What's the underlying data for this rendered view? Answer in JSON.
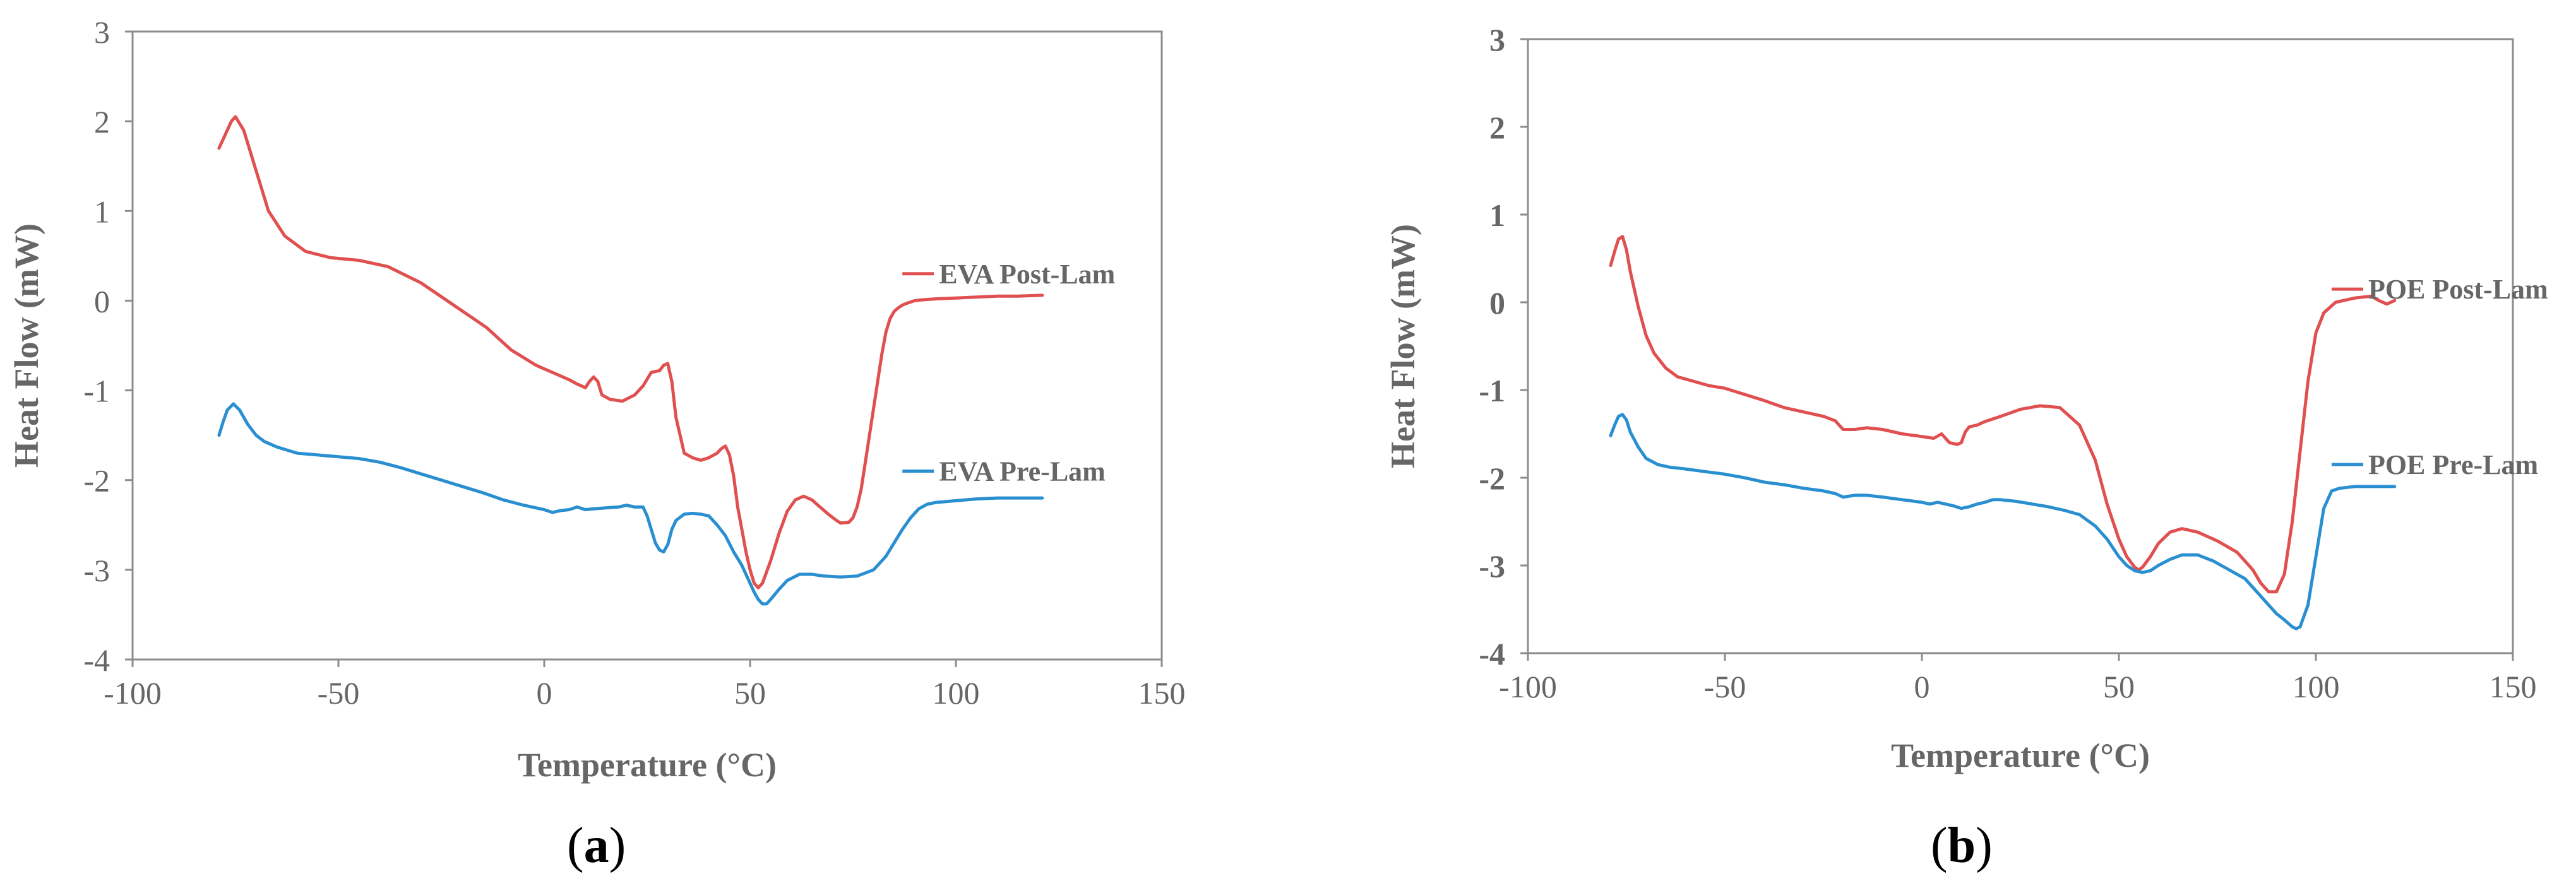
{
  "figure": {
    "panels": [
      {
        "caption_letter": "a"
      },
      {
        "caption_letter": "b"
      }
    ]
  },
  "colors": {
    "post_lam": "#e05050",
    "pre_lam": "#2a8fd0",
    "axis": "#8c8c8c",
    "text": "#666666"
  },
  "chart_data": [
    {
      "type": "line",
      "title": "",
      "xlabel": "Temperature (°C)",
      "ylabel": "Heat Flow (mW)",
      "xlim": [
        -100,
        150
      ],
      "ylim": [
        -4,
        3
      ],
      "xticks": [
        -100,
        -50,
        0,
        50,
        100,
        150
      ],
      "yticks": [
        -4,
        -3,
        -2,
        -1,
        0,
        1,
        2,
        3
      ],
      "series": [
        {
          "name": "EVA Post-Lam",
          "label_anchor": [
            87,
            0.3
          ],
          "x": [
            -79,
            -77.5,
            -76,
            -75,
            -73,
            -70,
            -67,
            -63,
            -58,
            -52,
            -45,
            -38,
            -30,
            -22,
            -14,
            -8,
            -2,
            3,
            6,
            8,
            10,
            11,
            12,
            13,
            14,
            16,
            19,
            22,
            24,
            26,
            28,
            29,
            30,
            31,
            32,
            34,
            36,
            38,
            40,
            42,
            43,
            44,
            45,
            46,
            47,
            48,
            49,
            50,
            51,
            52,
            53,
            55,
            57,
            59,
            61,
            63,
            65,
            67,
            69,
            71,
            72,
            74,
            75,
            76,
            77,
            78,
            79,
            80,
            81,
            82,
            83,
            84,
            85,
            86,
            87,
            88,
            90,
            92,
            95,
            100,
            105,
            110,
            115,
            121
          ],
          "y": [
            1.7,
            1.85,
            2.0,
            2.05,
            1.9,
            1.45,
            1.0,
            0.72,
            0.55,
            0.48,
            0.45,
            0.38,
            0.2,
            -0.05,
            -0.3,
            -0.55,
            -0.72,
            -0.82,
            -0.88,
            -0.93,
            -0.97,
            -0.9,
            -0.85,
            -0.9,
            -1.05,
            -1.1,
            -1.12,
            -1.05,
            -0.95,
            -0.8,
            -0.78,
            -0.72,
            -0.7,
            -0.9,
            -1.3,
            -1.7,
            -1.75,
            -1.78,
            -1.75,
            -1.7,
            -1.65,
            -1.62,
            -1.72,
            -1.95,
            -2.3,
            -2.55,
            -2.8,
            -3.0,
            -3.15,
            -3.2,
            -3.15,
            -2.9,
            -2.6,
            -2.35,
            -2.22,
            -2.18,
            -2.22,
            -2.3,
            -2.38,
            -2.45,
            -2.48,
            -2.47,
            -2.42,
            -2.3,
            -2.1,
            -1.8,
            -1.5,
            -1.2,
            -0.9,
            -0.6,
            -0.35,
            -0.2,
            -0.12,
            -0.08,
            -0.05,
            -0.03,
            0.0,
            0.01,
            0.02,
            0.03,
            0.04,
            0.05,
            0.05,
            0.06
          ]
        },
        {
          "name": "EVA Pre-Lam",
          "label_anchor": [
            87,
            -1.9
          ],
          "x": [
            -79,
            -78,
            -77,
            -75.5,
            -74,
            -72,
            -70,
            -68,
            -65,
            -60,
            -55,
            -50,
            -45,
            -40,
            -35,
            -30,
            -25,
            -20,
            -15,
            -10,
            -5,
            0,
            2,
            4,
            6,
            8,
            10,
            12,
            15,
            18,
            20,
            22,
            24,
            25,
            26,
            27,
            28,
            29,
            30,
            31,
            32,
            34,
            36,
            38,
            40,
            42,
            44,
            46,
            48,
            49,
            50,
            51,
            52,
            53,
            54,
            55,
            57,
            59,
            62,
            65,
            68,
            72,
            76,
            80,
            83,
            85,
            87,
            89,
            91,
            93,
            95,
            100,
            105,
            110,
            115,
            121
          ],
          "y": [
            -1.5,
            -1.35,
            -1.22,
            -1.15,
            -1.22,
            -1.38,
            -1.5,
            -1.57,
            -1.63,
            -1.7,
            -1.72,
            -1.74,
            -1.76,
            -1.8,
            -1.86,
            -1.93,
            -2.0,
            -2.07,
            -2.14,
            -2.22,
            -2.28,
            -2.33,
            -2.36,
            -2.34,
            -2.33,
            -2.3,
            -2.33,
            -2.32,
            -2.31,
            -2.3,
            -2.28,
            -2.3,
            -2.3,
            -2.4,
            -2.55,
            -2.7,
            -2.78,
            -2.8,
            -2.72,
            -2.55,
            -2.45,
            -2.38,
            -2.37,
            -2.38,
            -2.4,
            -2.5,
            -2.62,
            -2.8,
            -2.95,
            -3.05,
            -3.15,
            -3.25,
            -3.33,
            -3.38,
            -3.38,
            -3.33,
            -3.22,
            -3.12,
            -3.05,
            -3.05,
            -3.07,
            -3.08,
            -3.07,
            -3.0,
            -2.85,
            -2.7,
            -2.55,
            -2.42,
            -2.32,
            -2.27,
            -2.25,
            -2.23,
            -2.21,
            -2.2,
            -2.2,
            -2.2
          ]
        }
      ]
    },
    {
      "type": "line",
      "title": "",
      "xlabel": "Temperature (°C)",
      "ylabel": "Heat Flow (mW)",
      "xlim": [
        -100,
        150
      ],
      "ylim": [
        -4,
        3
      ],
      "xticks": [
        -100,
        -50,
        0,
        50,
        100,
        150
      ],
      "yticks": [
        -4,
        -3,
        -2,
        -1,
        0,
        1,
        2,
        3
      ],
      "series": [
        {
          "name": "POE Post-Lam",
          "label_anchor": [
            104,
            0.15
          ],
          "x": [
            -79,
            -78,
            -77,
            -76,
            -75,
            -74,
            -72,
            -70,
            -68,
            -65,
            -62,
            -58,
            -54,
            -50,
            -45,
            -40,
            -35,
            -30,
            -25,
            -22,
            -20,
            -17,
            -14,
            -10,
            -5,
            0,
            3,
            5,
            7,
            9,
            10,
            11,
            12,
            14,
            16,
            20,
            25,
            30,
            35,
            40,
            44,
            47,
            50,
            52,
            54,
            55,
            56,
            58,
            60,
            63,
            66,
            70,
            75,
            80,
            84,
            86,
            88,
            90,
            92,
            94,
            96,
            98,
            100,
            102,
            105,
            110,
            114,
            116,
            118,
            120
          ],
          "y": [
            0.42,
            0.58,
            0.72,
            0.75,
            0.6,
            0.35,
            -0.05,
            -0.38,
            -0.58,
            -0.75,
            -0.85,
            -0.9,
            -0.95,
            -0.98,
            -1.05,
            -1.12,
            -1.2,
            -1.25,
            -1.3,
            -1.35,
            -1.45,
            -1.45,
            -1.43,
            -1.45,
            -1.5,
            -1.53,
            -1.55,
            -1.5,
            -1.6,
            -1.62,
            -1.6,
            -1.48,
            -1.42,
            -1.4,
            -1.36,
            -1.3,
            -1.22,
            -1.18,
            -1.2,
            -1.4,
            -1.8,
            -2.3,
            -2.7,
            -2.9,
            -3.02,
            -3.05,
            -3.02,
            -2.9,
            -2.75,
            -2.62,
            -2.58,
            -2.62,
            -2.72,
            -2.85,
            -3.05,
            -3.2,
            -3.3,
            -3.3,
            -3.1,
            -2.5,
            -1.7,
            -0.9,
            -0.35,
            -0.12,
            0.0,
            0.05,
            0.07,
            0.02,
            -0.02,
            0.02
          ]
        },
        {
          "name": "POE Pre-Lam",
          "label_anchor": [
            104,
            -1.85
          ],
          "x": [
            -79,
            -78,
            -77,
            -76,
            -75,
            -74,
            -72,
            -70,
            -67,
            -64,
            -60,
            -55,
            -50,
            -45,
            -40,
            -35,
            -30,
            -25,
            -22,
            -20,
            -17,
            -14,
            -10,
            -5,
            0,
            2,
            4,
            6,
            8,
            10,
            12,
            14,
            16,
            18,
            20,
            24,
            28,
            32,
            36,
            40,
            44,
            47,
            50,
            52,
            54,
            56,
            58,
            60,
            63,
            66,
            70,
            74,
            78,
            82,
            86,
            88,
            90,
            92,
            94,
            95,
            96,
            98,
            100,
            102,
            104,
            106,
            110,
            115,
            120
          ],
          "y": [
            -1.52,
            -1.4,
            -1.3,
            -1.28,
            -1.34,
            -1.48,
            -1.65,
            -1.78,
            -1.85,
            -1.88,
            -1.9,
            -1.93,
            -1.96,
            -2.0,
            -2.05,
            -2.08,
            -2.12,
            -2.15,
            -2.18,
            -2.22,
            -2.2,
            -2.2,
            -2.22,
            -2.25,
            -2.28,
            -2.3,
            -2.28,
            -2.3,
            -2.32,
            -2.35,
            -2.33,
            -2.3,
            -2.28,
            -2.25,
            -2.25,
            -2.27,
            -2.3,
            -2.33,
            -2.37,
            -2.42,
            -2.55,
            -2.7,
            -2.9,
            -3.0,
            -3.06,
            -3.08,
            -3.06,
            -3.0,
            -2.93,
            -2.88,
            -2.88,
            -2.95,
            -3.05,
            -3.15,
            -3.35,
            -3.45,
            -3.55,
            -3.62,
            -3.7,
            -3.72,
            -3.7,
            -3.45,
            -2.9,
            -2.35,
            -2.15,
            -2.12,
            -2.1,
            -2.1,
            -2.1
          ]
        }
      ]
    }
  ]
}
